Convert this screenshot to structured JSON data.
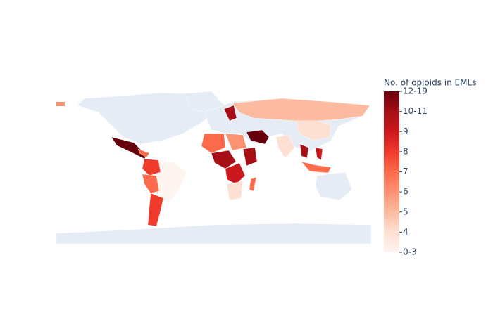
{
  "chart_data": {
    "type": "choropleth",
    "colorbar": {
      "title": "No. of opioids in EMLs",
      "lim": [
        3,
        11
      ],
      "ticks": [
        {
          "value": 3,
          "label": "0-3"
        },
        4,
        5,
        6,
        7,
        8,
        9,
        {
          "value": 10,
          "label": "10-11"
        },
        {
          "value": 11,
          "label": "12-19"
        }
      ],
      "colors": [
        "#fff5f0",
        "#fee0d2",
        "#fcbba1",
        "#fc9272",
        "#fb6a4a",
        "#ef3b2c",
        "#cb181d",
        "#a50f15",
        "#67000d"
      ]
    }
  }
}
